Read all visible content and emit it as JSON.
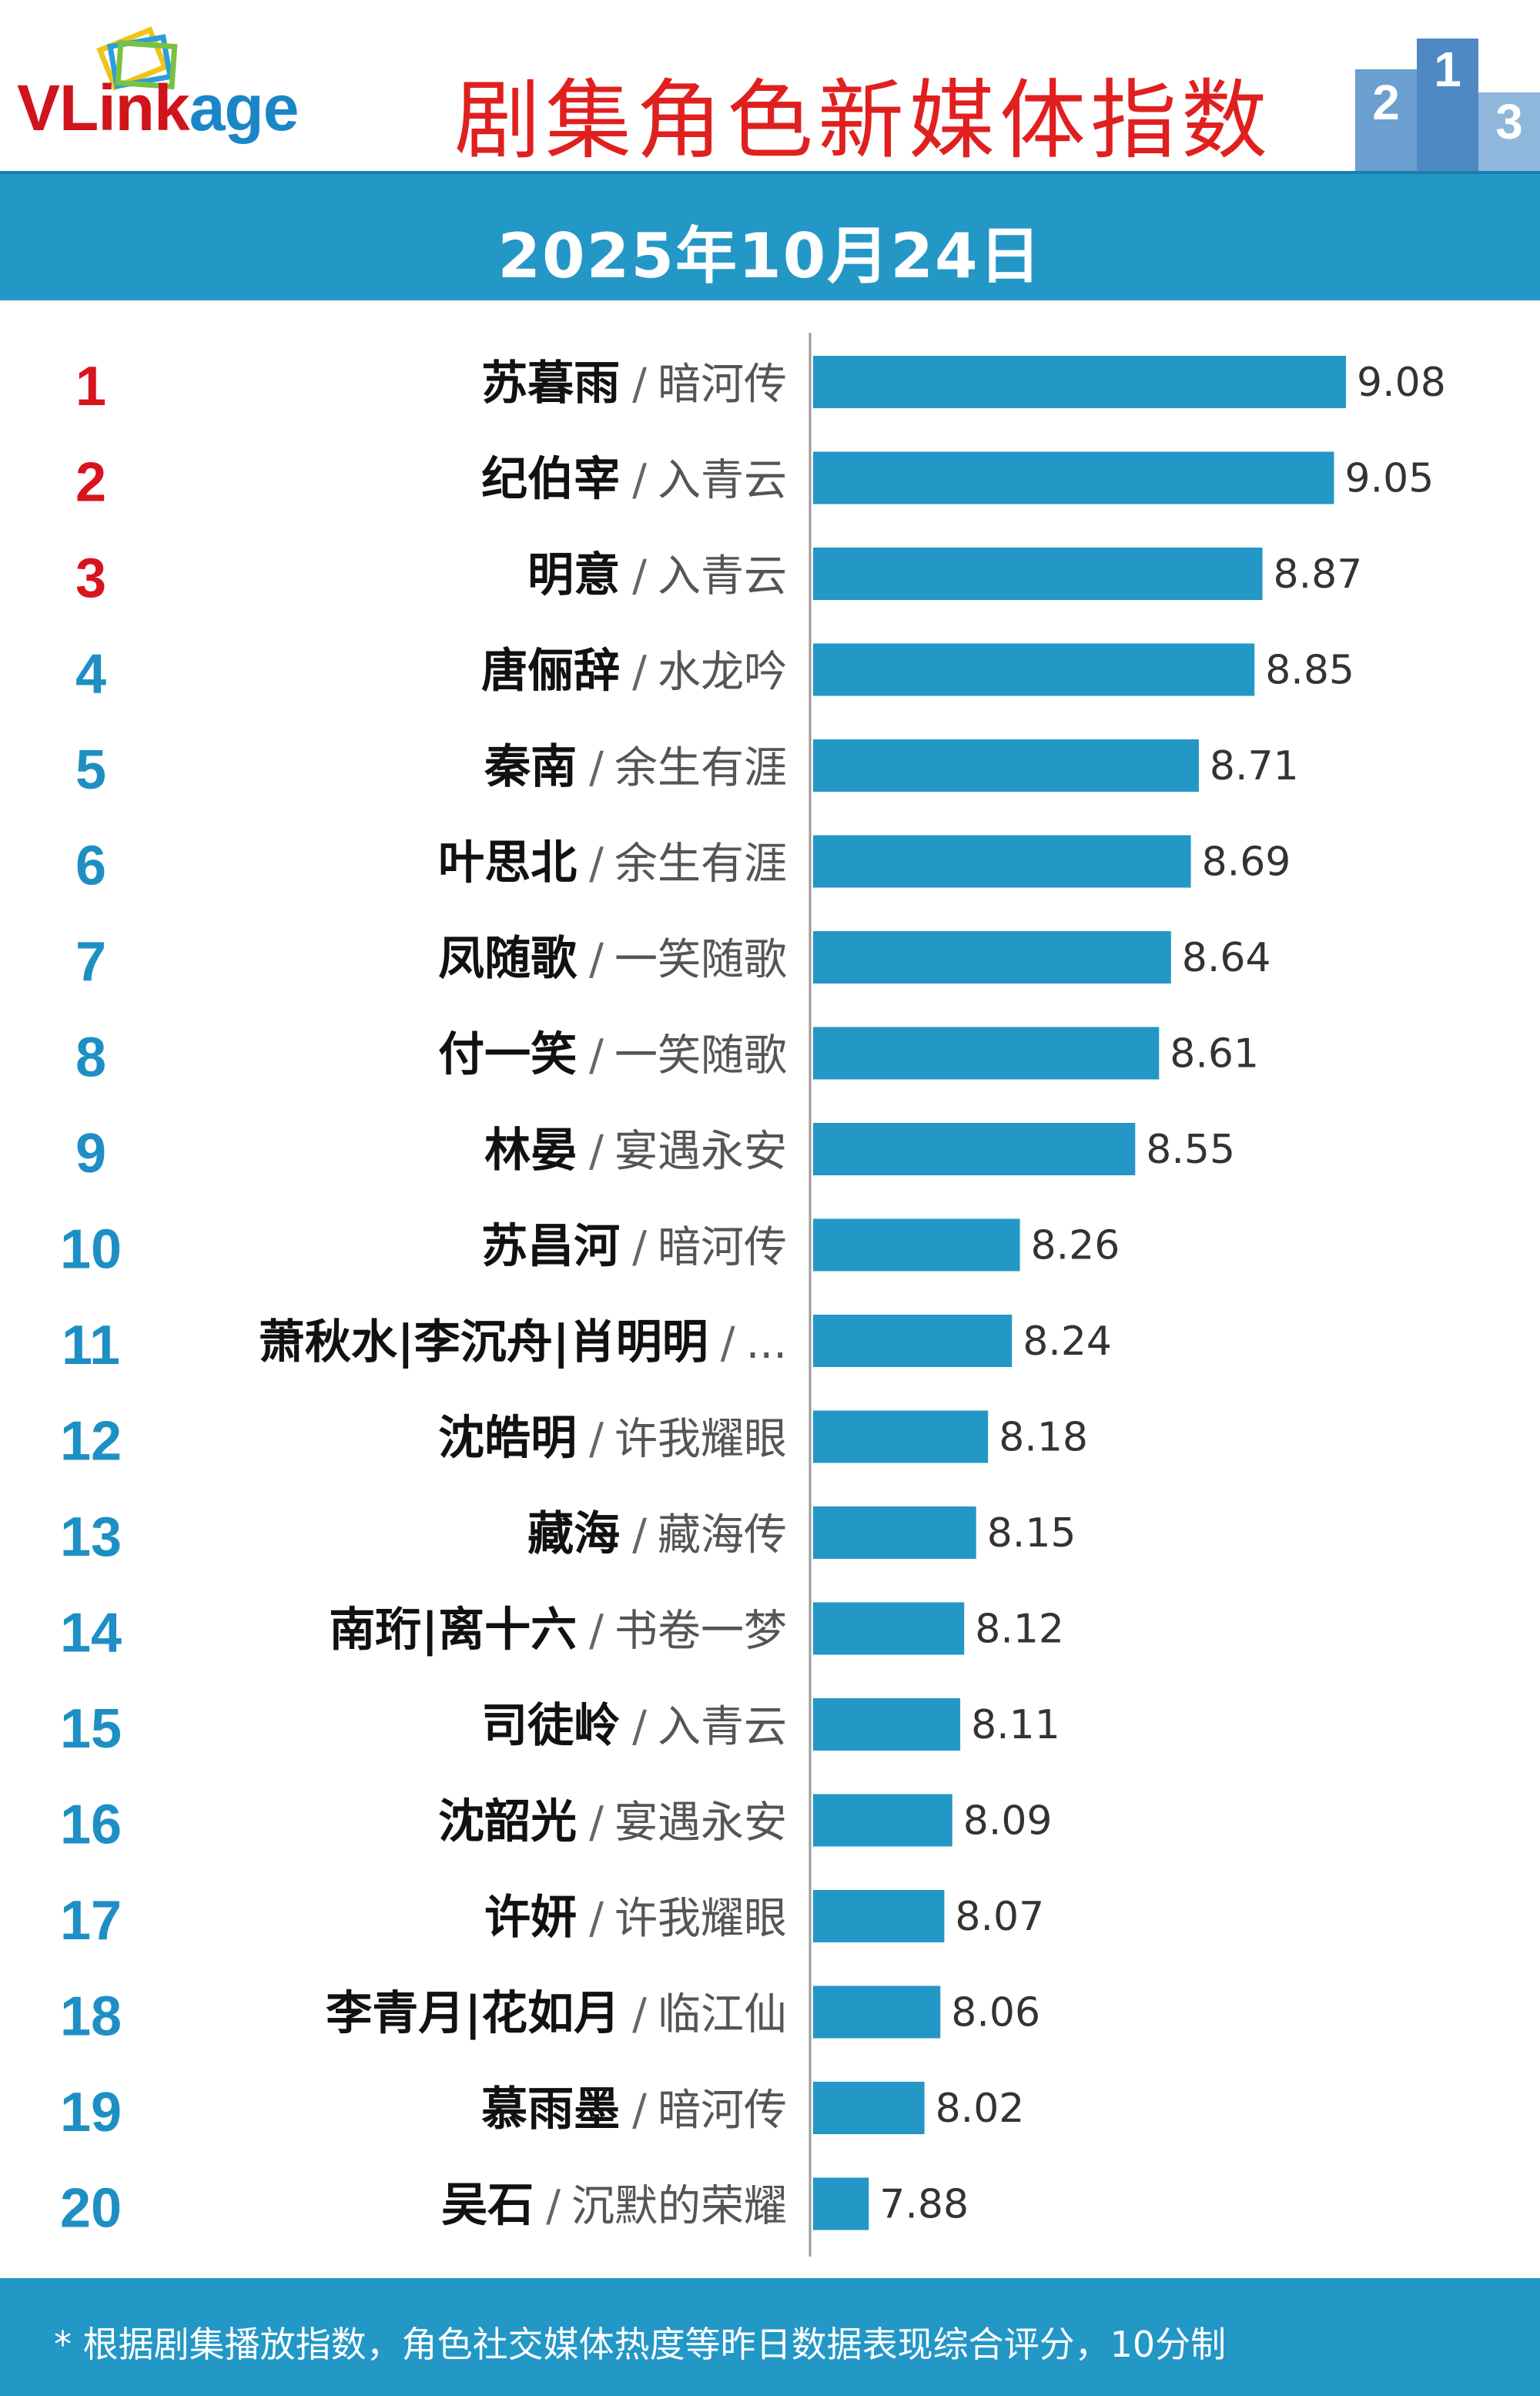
{
  "header": {
    "logo_text_v": "V",
    "logo_text_link": "Link",
    "logo_text_age": "age",
    "title": "剧集角色新媒体指数",
    "date": "2025年10月24日"
  },
  "footer": {
    "note": "* 根据剧集播放指数，角色社交媒体热度等昨日数据表现综合评分，10分制"
  },
  "colors": {
    "bar": "#2397c6",
    "rank_top": "#d8141c",
    "rank_other": "#1e8fc4",
    "title_red": "#e0201f",
    "banner": "#2397c6"
  },
  "chart_data": {
    "type": "bar",
    "orientation": "horizontal",
    "xlim": [
      7.74,
      9.24
    ],
    "rows": [
      {
        "rank": "1",
        "role": "苏暮雨",
        "drama": "暗河传",
        "value": 9.08
      },
      {
        "rank": "2",
        "role": "纪伯宰",
        "drama": "入青云",
        "value": 9.05
      },
      {
        "rank": "3",
        "role": "明意",
        "drama": "入青云",
        "value": 8.87
      },
      {
        "rank": "4",
        "role": "唐俪辞",
        "drama": "水龙吟",
        "value": 8.85
      },
      {
        "rank": "5",
        "role": "秦南",
        "drama": "余生有涯",
        "value": 8.71
      },
      {
        "rank": "6",
        "role": "叶思北",
        "drama": "余生有涯",
        "value": 8.69
      },
      {
        "rank": "7",
        "role": "凤随歌",
        "drama": "一笑随歌",
        "value": 8.64
      },
      {
        "rank": "8",
        "role": "付一笑",
        "drama": "一笑随歌",
        "value": 8.61
      },
      {
        "rank": "9",
        "role": "林晏",
        "drama": "宴遇永安",
        "value": 8.55
      },
      {
        "rank": "10",
        "role": "苏昌河",
        "drama": "暗河传",
        "value": 8.26
      },
      {
        "rank": "11",
        "role": "萧秋水|李沉舟|肖明明",
        "drama": "...",
        "value": 8.24
      },
      {
        "rank": "12",
        "role": "沈皓明",
        "drama": "许我耀眼",
        "value": 8.18
      },
      {
        "rank": "13",
        "role": "藏海",
        "drama": "藏海传",
        "value": 8.15
      },
      {
        "rank": "14",
        "role": "南珩|离十六",
        "drama": "书卷一梦",
        "value": 8.12
      },
      {
        "rank": "15",
        "role": "司徒岭",
        "drama": "入青云",
        "value": 8.11
      },
      {
        "rank": "16",
        "role": "沈韶光",
        "drama": "宴遇永安",
        "value": 8.09
      },
      {
        "rank": "17",
        "role": "许妍",
        "drama": "许我耀眼",
        "value": 8.07
      },
      {
        "rank": "18",
        "role": "李青月|花如月",
        "drama": "临江仙",
        "value": 8.06
      },
      {
        "rank": "19",
        "role": "慕雨墨",
        "drama": "暗河传",
        "value": 8.02
      },
      {
        "rank": "20",
        "role": "吴石",
        "drama": "沉默的荣耀",
        "value": 7.88
      }
    ]
  }
}
